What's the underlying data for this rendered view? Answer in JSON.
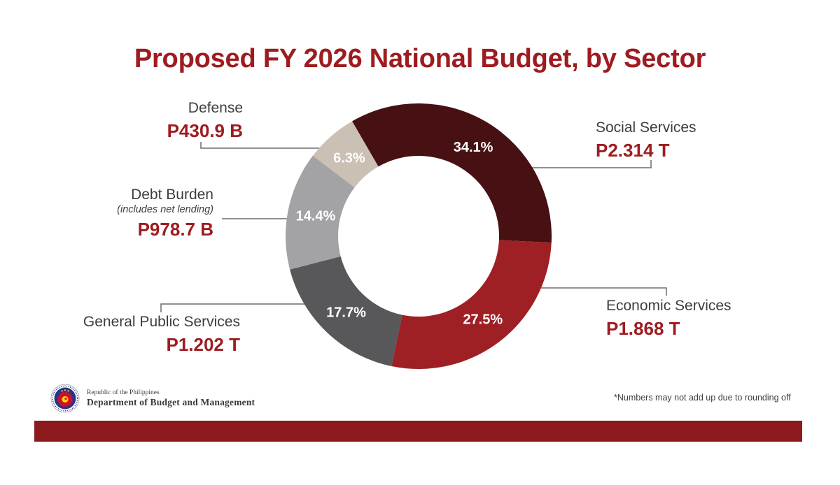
{
  "title": "Proposed FY 2026 National Budget, by Sector",
  "chart_data": {
    "type": "pie",
    "subtype": "donut",
    "title": "Proposed FY 2026 National Budget, by Sector",
    "start_angle_deg": -30,
    "direction": "clockwise",
    "inner_radius_ratio": 0.605,
    "legend_position": "callouts-around-chart",
    "segments": [
      {
        "label": "Social Services",
        "value_text": "P2.314 T",
        "percent": 34.1,
        "percent_label": "34.1%",
        "color": "#471013"
      },
      {
        "label": "Economic Services",
        "value_text": "P1.868 T",
        "percent": 27.5,
        "percent_label": "27.5%",
        "color": "#9E2025"
      },
      {
        "label": "General Public Services",
        "value_text": "P1.202 T",
        "percent": 17.7,
        "percent_label": "17.7%",
        "color": "#58585B"
      },
      {
        "label": "Debt Burden",
        "sublabel": "(includes net lending)",
        "value_text": "P978.7 B",
        "percent": 14.4,
        "percent_label": "14.4%",
        "color": "#A3A2A4"
      },
      {
        "label": "Defense",
        "value_text": "P430.9 B",
        "percent": 6.3,
        "percent_label": "6.3%",
        "color": "#CAC0B4"
      }
    ]
  },
  "footer": {
    "org_line1": "Republic of the Philippines",
    "org_line2": "Department of Budget and Management",
    "note": "*Numbers may not add up due to rounding off"
  },
  "colors": {
    "title_text": "#9E1C20",
    "value_text": "#9E1C20",
    "label_text": "#3D3D3D",
    "percent_text": "#FFFFFF",
    "leader_line": "#6B6B6B",
    "bottom_bar": "#8C191C",
    "background": "#FFFFFF"
  }
}
